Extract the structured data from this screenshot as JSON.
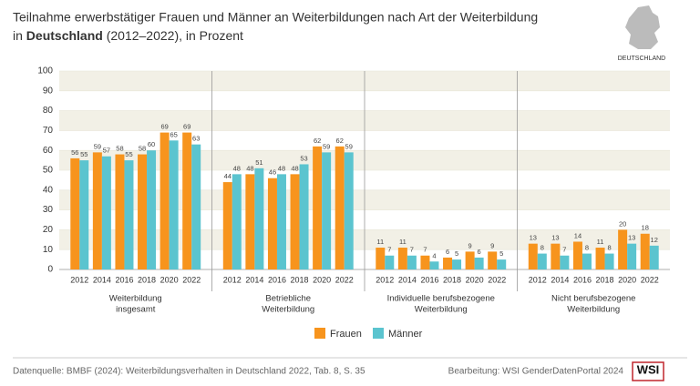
{
  "chart_data": {
    "type": "bar",
    "title": "Teilnahme erwerbstätiger Frauen und Männer an Weiterbildungen nach Art der Weiterbildung",
    "subtitle_prefix": "in",
    "subtitle_bold": "Deutschland",
    "subtitle_suffix": "(2012–2022), in Prozent",
    "map_label": "DEUTSCHLAND",
    "source": "Datenquelle: BMBF (2024): Weiterbildungsverhalten in Deutschland 2022, Tab. 8, S. 35",
    "credit": "Bearbeitung: WSI GenderDatenPortal 2024",
    "logo": "WSI",
    "ylim": [
      0,
      100
    ],
    "yticks": [
      0,
      10,
      20,
      30,
      40,
      50,
      60,
      70,
      80,
      90,
      100
    ],
    "grid": true,
    "series": [
      {
        "name": "Frauen",
        "color": "#f7941d"
      },
      {
        "name": "Männer",
        "color": "#5bc4cf"
      }
    ],
    "panels": [
      {
        "label": [
          "Weiterbildung",
          "insgesamt"
        ],
        "categories": [
          "2012",
          "2014",
          "2016",
          "2018",
          "2020",
          "2022"
        ],
        "values": [
          [
            56,
            59,
            58,
            58,
            69,
            69
          ],
          [
            55,
            57,
            55,
            60,
            65,
            63
          ]
        ]
      },
      {
        "label": [
          "Betriebliche",
          "Weiterbildung"
        ],
        "categories": [
          "2012",
          "2014",
          "2016",
          "2018",
          "2020",
          "2022"
        ],
        "values": [
          [
            44,
            48,
            46,
            48,
            62,
            62
          ],
          [
            48,
            51,
            48,
            53,
            59,
            59
          ]
        ]
      },
      {
        "label": [
          "Individuelle berufsbezogene",
          "Weiterbildung"
        ],
        "categories": [
          "2012",
          "2014",
          "2016",
          "2018",
          "2020",
          "2022"
        ],
        "values": [
          [
            11,
            11,
            7,
            6,
            9,
            9
          ],
          [
            7,
            7,
            4,
            5,
            6,
            5
          ]
        ]
      },
      {
        "label": [
          "Nicht berufsbezogene",
          "Weiterbildung"
        ],
        "categories": [
          "2012",
          "2014",
          "2016",
          "2018",
          "2020",
          "2022"
        ],
        "values": [
          [
            13,
            13,
            14,
            11,
            20,
            18
          ],
          [
            8,
            7,
            8,
            8,
            13,
            12
          ]
        ]
      }
    ]
  }
}
